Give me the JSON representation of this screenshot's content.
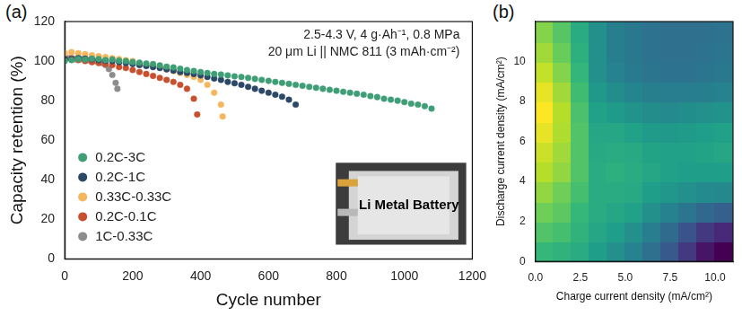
{
  "chart_data": [
    {
      "type": "scatter",
      "label": "(a)",
      "x_label": "Cycle number",
      "y_label": "Capacity retention (%)",
      "annotations": [
        "2.5-4.3 V, 4 g·Ah⁻¹, 0.8 MPa",
        "20 μm Li || NMC 811 (3 mAh·cm⁻²)"
      ],
      "inset_text": "Li Metal Battery",
      "xlim": [
        0,
        1200
      ],
      "ylim": [
        0,
        120
      ],
      "xticks": [
        0,
        200,
        400,
        600,
        800,
        1000,
        1200
      ],
      "yticks": [
        0,
        20,
        40,
        60,
        80,
        100,
        120
      ],
      "grid": false,
      "legend": "lower left",
      "marker": "circle",
      "series": [
        {
          "name": "0.2C-3C",
          "color": "#3f9e76",
          "x": [
            0,
            20,
            40,
            60,
            80,
            100,
            120,
            140,
            160,
            180,
            200,
            220,
            240,
            260,
            280,
            300,
            320,
            340,
            360,
            380,
            400,
            420,
            440,
            460,
            480,
            500,
            520,
            540,
            560,
            580,
            600,
            620,
            640,
            660,
            680,
            700,
            720,
            740,
            760,
            780,
            800,
            820,
            840,
            860,
            880,
            900,
            920,
            940,
            960,
            980,
            1000,
            1020,
            1040,
            1060,
            1080
          ],
          "values": [
            100,
            100.5,
            101,
            100.8,
            101.2,
            101,
            100.5,
            100.8,
            100.2,
            100,
            99.5,
            99.2,
            98.8,
            98.5,
            97.8,
            97.2,
            96.8,
            96.2,
            95.5,
            95,
            94.5,
            94,
            93.5,
            93.2,
            92.8,
            92.3,
            92,
            91.5,
            91,
            90.5,
            90,
            89.5,
            89,
            88.5,
            88,
            87.5,
            87,
            86.5,
            86,
            85.5,
            85,
            84.5,
            84,
            83.5,
            83,
            82.3,
            81.8,
            81,
            80.5,
            80,
            79.3,
            78.5,
            78,
            77.2,
            76
          ]
        },
        {
          "name": "0.2C-1C",
          "color": "#2b4866",
          "x": [
            0,
            20,
            40,
            60,
            80,
            100,
            120,
            140,
            160,
            180,
            200,
            220,
            240,
            260,
            280,
            300,
            320,
            340,
            360,
            380,
            400,
            420,
            440,
            460,
            480,
            500,
            520,
            540,
            560,
            580,
            600,
            620,
            640,
            660,
            680
          ],
          "values": [
            101,
            101,
            101.5,
            101.2,
            101,
            100.5,
            100.2,
            100,
            99.5,
            99,
            98.5,
            98,
            97.5,
            97,
            96.5,
            95.8,
            95.2,
            94.5,
            94,
            93.5,
            92.8,
            92,
            91.2,
            90.5,
            89.5,
            88.8,
            88,
            87,
            86,
            85,
            84,
            83,
            82,
            80.5,
            78
          ]
        },
        {
          "name": "0.33C-0.33C",
          "color": "#f5b65e",
          "x": [
            0,
            20,
            40,
            60,
            80,
            100,
            120,
            140,
            160,
            180,
            200,
            220,
            240,
            260,
            280,
            300,
            320,
            340,
            360,
            380,
            400,
            420,
            440,
            460,
            465
          ],
          "values": [
            104,
            104.5,
            104,
            103.5,
            103,
            102.5,
            102,
            101.5,
            101,
            100.5,
            100,
            99,
            98,
            97.5,
            97,
            96,
            95,
            94,
            93,
            92,
            90.5,
            88,
            84,
            78,
            72
          ]
        },
        {
          "name": "0.2C-0.1C",
          "color": "#c9502e",
          "x": [
            0,
            20,
            40,
            60,
            80,
            100,
            120,
            140,
            160,
            180,
            200,
            220,
            240,
            260,
            280,
            300,
            320,
            340,
            360,
            380,
            390
          ],
          "values": [
            101,
            101.5,
            100.5,
            100,
            99.5,
            99,
            98.5,
            98,
            97,
            96.5,
            95.5,
            94.5,
            93.5,
            92.5,
            91.5,
            90.5,
            89.5,
            88,
            86,
            81,
            73
          ]
        },
        {
          "name": "1C-0.33C",
          "color": "#8c8c8c",
          "x": [
            0,
            10,
            20,
            30,
            40,
            50,
            60,
            70,
            80,
            90,
            100,
            110,
            120,
            130,
            140,
            150,
            155
          ],
          "values": [
            101,
            101.5,
            101.5,
            101,
            101,
            101,
            100.5,
            100.5,
            100,
            100,
            99.5,
            99,
            98,
            96,
            93,
            89,
            86
          ]
        }
      ]
    },
    {
      "type": "heatmap",
      "label": "(b)",
      "x_label": "Charge current density (mA/cm²)",
      "y_label": "Discharge current density (mA/cm²)",
      "xlim": [
        0,
        11
      ],
      "ylim": [
        0,
        12
      ],
      "xticks": [
        {
          "value": 0,
          "label": "0.0"
        },
        2.5,
        {
          "value": 5,
          "label": "5.0"
        },
        7.5,
        {
          "value": 10,
          "label": "10.0"
        }
      ],
      "yticks": [
        0,
        2,
        4,
        6,
        8,
        10
      ],
      "grid": false,
      "x_bins": [
        0,
        1,
        2,
        3,
        4,
        5,
        6,
        7,
        8,
        9,
        10,
        11
      ],
      "y_bins": [
        0,
        1,
        2,
        3,
        4,
        5,
        6,
        7,
        8,
        9,
        10,
        11,
        12
      ],
      "values": [
        [
          6.5,
          6.3,
          6.0,
          5.5,
          5.0,
          4.5,
          3.8,
          3.0,
          2.0,
          1.0,
          0.5
        ],
        [
          7.0,
          6.8,
          6.3,
          5.8,
          5.5,
          5.0,
          4.3,
          3.6,
          2.8,
          2.0,
          1.5
        ],
        [
          7.5,
          7.2,
          6.5,
          6.0,
          5.8,
          5.6,
          5.0,
          4.5,
          4.0,
          3.5,
          3.2
        ],
        [
          8.0,
          7.5,
          6.8,
          6.0,
          6.0,
          5.9,
          5.5,
          5.2,
          5.0,
          4.8,
          4.7
        ],
        [
          8.5,
          8.0,
          7.0,
          6.0,
          6.2,
          6.0,
          5.8,
          5.6,
          5.5,
          5.5,
          5.5
        ],
        [
          8.8,
          8.2,
          7.0,
          5.9,
          6.0,
          5.9,
          5.7,
          5.6,
          5.6,
          5.7,
          5.8
        ],
        [
          9.2,
          8.4,
          7.0,
          5.8,
          5.8,
          5.6,
          5.4,
          5.3,
          5.4,
          5.5,
          5.6
        ],
        [
          9.5,
          8.5,
          6.9,
          5.6,
          5.4,
          5.1,
          4.9,
          4.8,
          4.9,
          5.0,
          5.1
        ],
        [
          9.2,
          8.2,
          6.7,
          5.3,
          4.9,
          4.6,
          4.4,
          4.3,
          4.3,
          4.4,
          4.5
        ],
        [
          8.7,
          7.8,
          6.4,
          5.0,
          4.5,
          4.2,
          4.0,
          3.9,
          3.9,
          4.0,
          4.1
        ],
        [
          8.2,
          7.4,
          6.2,
          5.0,
          4.4,
          4.1,
          3.9,
          3.8,
          3.8,
          3.9,
          4.0
        ],
        [
          7.8,
          7.1,
          6.0,
          5.0,
          4.4,
          4.1,
          3.9,
          3.8,
          3.8,
          3.8,
          3.9
        ]
      ]
    }
  ]
}
